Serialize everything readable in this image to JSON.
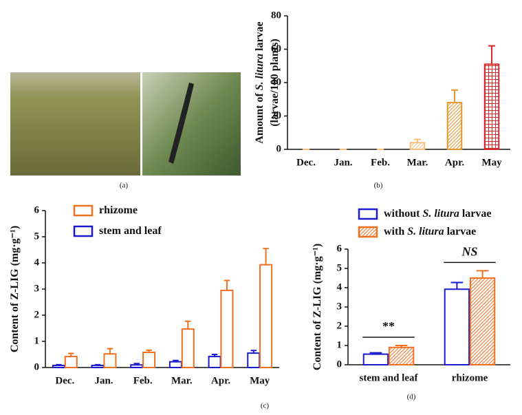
{
  "photo_panel": {
    "caption": "(a)"
  },
  "chart_data": [
    {
      "type": "bar",
      "caption": "(b)",
      "ylabel_lines": [
        [
          "Amount of ",
          "S. litura",
          " larvae"
        ],
        [
          "(larvae/100 plants)"
        ]
      ],
      "categories": [
        "Dec.",
        "Jan.",
        "Feb.",
        "Mar.",
        "Apr.",
        "May"
      ],
      "values": [
        0,
        0,
        0,
        4,
        28,
        51
      ],
      "errors": [
        0,
        0,
        0,
        2,
        7.5,
        11
      ],
      "colors": [
        "#f5c07a",
        "#f5c07a",
        "#f5c07a",
        "#f5c07a",
        "#e8952e",
        "#d42a2a"
      ],
      "patterns": [
        "diagonal",
        "diagonal",
        "diagonal",
        "diagonal",
        "diagonal",
        "grid"
      ],
      "ylim": [
        0,
        80
      ],
      "yticks": [
        0,
        20,
        40,
        60,
        80
      ]
    },
    {
      "type": "grouped-bar",
      "caption": "(c)",
      "ylabel_lines": [
        [
          "Content of Z-LIG (mg·g⁻¹)"
        ]
      ],
      "categories": [
        "Dec.",
        "Jan.",
        "Feb.",
        "Mar.",
        "Apr.",
        "May"
      ],
      "series": [
        {
          "name": [
            "stem and leaf"
          ],
          "color": "#1a1ad0",
          "pattern": "none",
          "values": [
            0.08,
            0.08,
            0.1,
            0.22,
            0.42,
            0.55
          ],
          "errors": [
            0.03,
            0.03,
            0.05,
            0.05,
            0.08,
            0.1
          ]
        },
        {
          "name": [
            "rhizome"
          ],
          "color": "#f07020",
          "pattern": "none",
          "values": [
            0.42,
            0.52,
            0.58,
            1.47,
            2.95,
            3.93
          ],
          "errors": [
            0.12,
            0.2,
            0.08,
            0.3,
            0.38,
            0.62
          ]
        }
      ],
      "ylim": [
        0,
        6
      ],
      "yticks": [
        0,
        1,
        2,
        3,
        4,
        5,
        6
      ]
    },
    {
      "type": "grouped-bar",
      "caption": "(d)",
      "ylabel_lines": [
        [
          "Content of Z-LIG (mg·g⁻¹)"
        ]
      ],
      "categories": [
        "stem and leaf",
        "rhizome"
      ],
      "series": [
        {
          "name": [
            "without ",
            "S. litura",
            " larvae"
          ],
          "color": "#1a1ad0",
          "pattern": "none",
          "values": [
            0.55,
            3.92
          ],
          "errors": [
            0.07,
            0.35
          ]
        },
        {
          "name": [
            "with ",
            "S. litura",
            " larvae"
          ],
          "color": "#f07020",
          "pattern": "diagonal",
          "values": [
            0.9,
            4.5
          ],
          "errors": [
            0.1,
            0.38
          ]
        }
      ],
      "annotations": [
        {
          "text": "**",
          "category": 0,
          "italic": false
        },
        {
          "text": "NS",
          "category": 1,
          "italic": true
        }
      ],
      "ylim": [
        0,
        6
      ],
      "yticks": [
        0,
        1,
        2,
        3,
        4,
        5,
        6
      ]
    }
  ]
}
